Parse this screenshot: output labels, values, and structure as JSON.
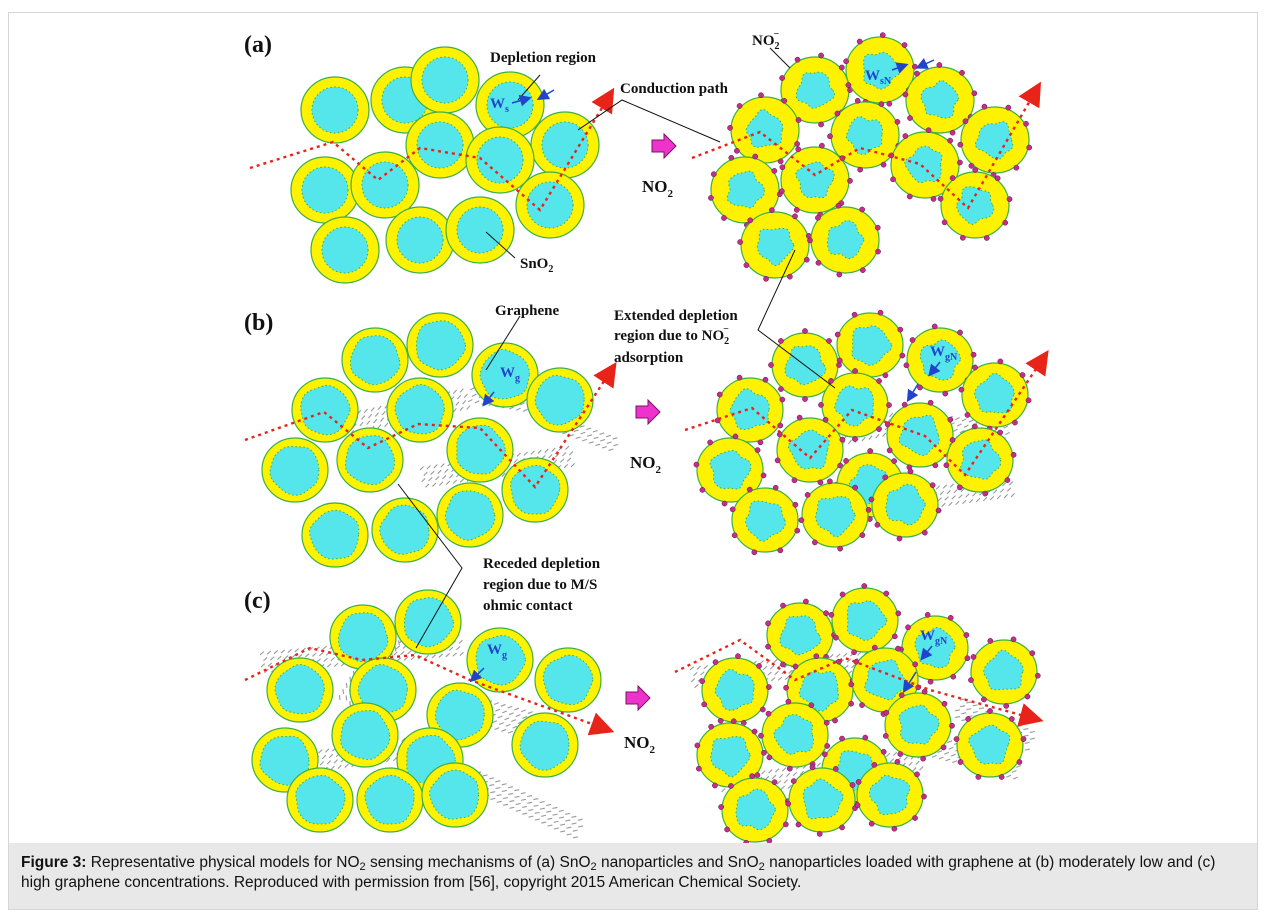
{
  "panels": {
    "a": "(a)",
    "b": "(b)",
    "c": "(c)"
  },
  "labels": {
    "depletion_region": "Depletion region",
    "conduction_path": "Conduction path",
    "sno2": "SnO",
    "sno2_sub": "2",
    "no2_ion": "NO",
    "no2_ion_sub": "2",
    "no2_ion_sup": "−",
    "graphene": "Graphene",
    "extended_1": "Extended depletion",
    "extended_2": "region due to NO",
    "extended_2_sub": "2",
    "extended_2_sup": "−",
    "extended_3": "adsorption",
    "receded_1": "Receded depletion",
    "receded_2": "region due to M/S",
    "receded_3": "ohmic contact",
    "no2_gas": "NO",
    "no2_gas_sub": "2"
  },
  "widths": {
    "ws": "W",
    "ws_sub": "s",
    "wsn": "W",
    "wsn_sub": "sN",
    "wg": "W",
    "wg_sub": "g",
    "wgn": "W",
    "wgn_sub": "gN"
  },
  "caption": {
    "label": "Figure 3:",
    "p1": " Representative physical models for NO",
    "s1": "2",
    "p2": " sensing mechanisms of (a) SnO",
    "s2": "2",
    "p3": " nanoparticles and SnO",
    "s3": "2",
    "p4": " nanoparticles loaded with graphene at (b) moderately low and (c) high graphene concentrations. Reproduced with permission from [56], copyright 2015 American Chemical Society."
  },
  "colors": {
    "shell": "#fff200",
    "shell_edge": "#3cb043",
    "core": "#55e6ec",
    "core_dots": "#3cb043",
    "path": "#e8231a",
    "arrow": "#ee33cc",
    "adsorbate": "#c0308a",
    "graphene": "#9a9a9a",
    "width_arrow": "#2244cc"
  }
}
